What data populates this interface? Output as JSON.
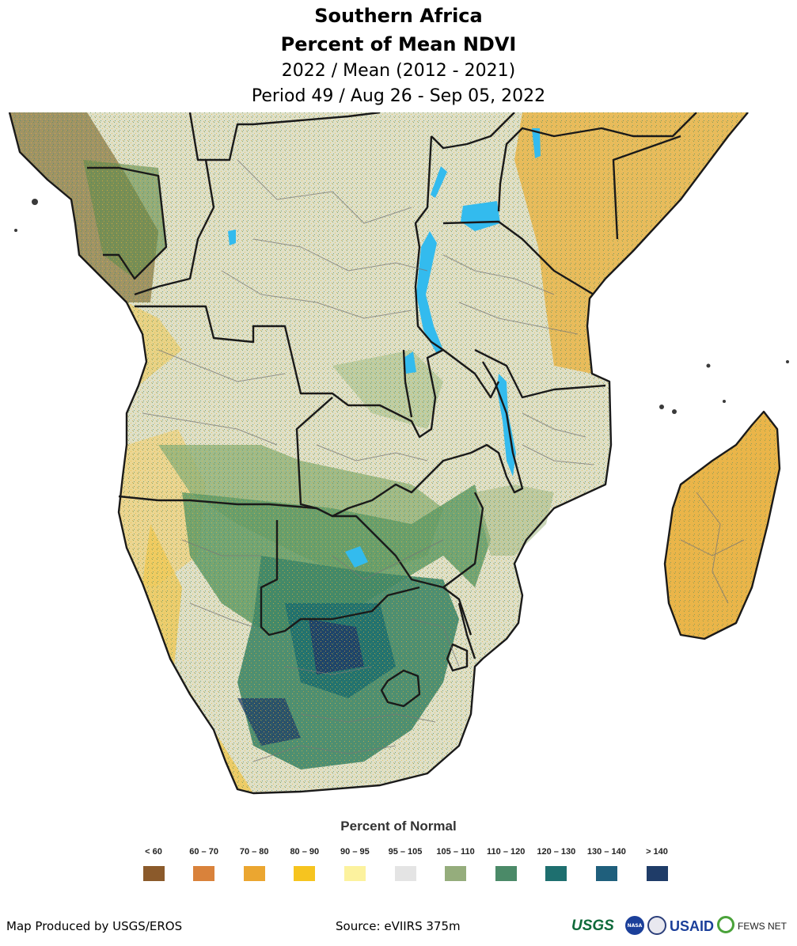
{
  "header": {
    "region": "Southern Africa",
    "product": "Percent of Mean NDVI",
    "comparison": "2022 / Mean (2012 - 2021)",
    "period": "Period 49 / Aug 26 - Sep 05, 2022"
  },
  "legend": {
    "title": "Percent of Normal",
    "items": [
      {
        "label": "< 60",
        "color": "#8b5a2b"
      },
      {
        "label": "60 – 70",
        "color": "#d9823b"
      },
      {
        "label": "70 – 80",
        "color": "#eba630"
      },
      {
        "label": "80 – 90",
        "color": "#f6c41f"
      },
      {
        "label": "90 – 95",
        "color": "#fcf29e"
      },
      {
        "label": "95 – 105",
        "color": "#e4e4e4"
      },
      {
        "label": "105 – 110",
        "color": "#95ad7c"
      },
      {
        "label": "110 – 120",
        "color": "#4b8a68"
      },
      {
        "label": "120 – 130",
        "color": "#1e6f6f"
      },
      {
        "label": "130 – 140",
        "color": "#1f5f7c"
      },
      {
        "label": "> 140",
        "color": "#1f3c68"
      }
    ]
  },
  "footer": {
    "credit": "Map Produced by USGS/EROS",
    "source": "Source: eVIIRS 375m"
  },
  "logos": {
    "usgs": "USGS",
    "nasa": "NASA",
    "usaid": "USAID",
    "fews": "FEWS NET"
  },
  "colors": {
    "water": "#33bbee",
    "border": "#1a1a1a",
    "admin": "#777777"
  }
}
